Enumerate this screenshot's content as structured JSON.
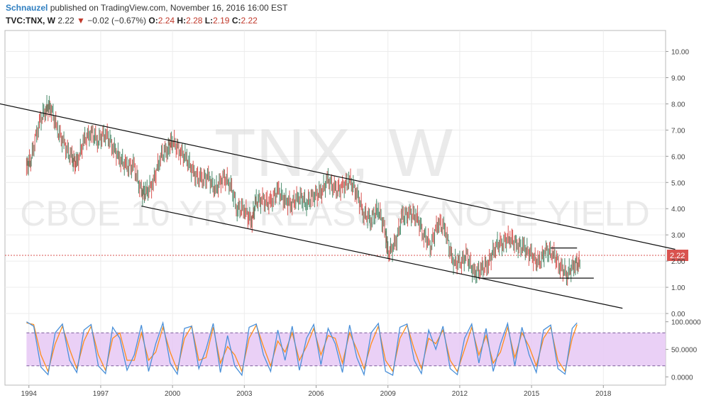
{
  "header": {
    "author": "Schnauzel",
    "published": " published on TradingView.com, November 16, 2016 16:00 EST"
  },
  "quote": {
    "symbol": "TVC:TNX, W",
    "last": "2.22",
    "change": "−0.02 (−0.67%)",
    "open_label": "O:",
    "open": "2.24",
    "high_label": "H:",
    "high": "2.28",
    "low_label": "L:",
    "low": "2.19",
    "close_label": "C:",
    "close": "2.22"
  },
  "watermark": {
    "line1": "TNX, W",
    "line2": "CBOE 10 YR TREASURY NOTE YIELD"
  },
  "colors": {
    "up": "#4a8a6a",
    "down": "#d9534f",
    "price_line": "#d9534f",
    "stoch_k": "#4a90d9",
    "stoch_d": "#ff8c1a",
    "stoch_band": "#e6c8f5"
  },
  "chart_data": [
    {
      "type": "line",
      "name": "price",
      "x_ticks": [
        "1994",
        "1997",
        "2000",
        "2003",
        "2006",
        "2009",
        "2012",
        "2015",
        "2018"
      ],
      "y_ticks": [
        "0.00",
        "1.00",
        "2.00",
        "3.00",
        "4.00",
        "5.00",
        "6.00",
        "7.00",
        "8.00",
        "9.00",
        "10.00"
      ],
      "ylim": [
        0,
        10.8
      ],
      "xlim": [
        1993.0,
        2020.6
      ],
      "last_price_label": "2.22",
      "last_price": 2.22,
      "x": [
        1993.9,
        1994.1,
        1994.4,
        1994.7,
        1994.9,
        1995.2,
        1995.5,
        1995.8,
        1996.0,
        1996.3,
        1996.6,
        1996.9,
        1997.2,
        1997.5,
        1997.8,
        1998.1,
        1998.4,
        1998.7,
        1998.9,
        1999.2,
        1999.5,
        1999.8,
        2000.0,
        2000.3,
        2000.6,
        2000.9,
        2001.2,
        2001.5,
        2001.8,
        2002.1,
        2002.4,
        2002.7,
        2003.0,
        2003.3,
        2003.5,
        2003.8,
        2004.1,
        2004.4,
        2004.7,
        2005.0,
        2005.3,
        2005.6,
        2005.9,
        2006.2,
        2006.5,
        2006.8,
        2007.1,
        2007.4,
        2007.7,
        2008.0,
        2008.3,
        2008.6,
        2008.9,
        2009.0,
        2009.3,
        2009.6,
        2009.9,
        2010.2,
        2010.5,
        2010.8,
        2011.1,
        2011.4,
        2011.7,
        2012.0,
        2012.3,
        2012.6,
        2012.9,
        2013.2,
        2013.5,
        2013.8,
        2014.1,
        2014.4,
        2014.7,
        2015.0,
        2015.3,
        2015.6,
        2015.9,
        2016.2,
        2016.5,
        2016.8
      ],
      "y": [
        5.6,
        5.9,
        7.2,
        7.8,
        7.9,
        7.0,
        6.4,
        5.9,
        5.7,
        6.6,
        6.9,
        6.6,
        6.9,
        6.4,
        5.9,
        5.6,
        5.6,
        4.6,
        4.6,
        5.0,
        6.0,
        6.3,
        6.6,
        6.2,
        5.9,
        5.3,
        5.1,
        5.2,
        4.7,
        5.2,
        5.0,
        4.0,
        4.0,
        3.5,
        4.3,
        4.3,
        4.2,
        4.7,
        4.3,
        4.2,
        4.5,
        4.2,
        4.5,
        4.6,
        5.1,
        4.7,
        4.8,
        5.1,
        4.6,
        3.8,
        3.6,
        4.0,
        3.1,
        2.3,
        2.6,
        3.7,
        3.8,
        3.7,
        3.0,
        2.6,
        3.5,
        3.2,
        2.0,
        1.9,
        2.2,
        1.5,
        1.7,
        1.9,
        2.6,
        2.7,
        2.9,
        2.6,
        2.5,
        2.2,
        1.9,
        2.4,
        2.3,
        1.8,
        1.5,
        1.9
      ],
      "annotations": {
        "upper_trendline": [
          [
            1990.0,
            8.55
          ],
          [
            2021.0,
            2.45
          ]
        ],
        "lower_trendline": [
          [
            1998.7,
            4.1
          ],
          [
            2018.8,
            0.2
          ]
        ],
        "support_line": [
          [
            2012.8,
            1.35
          ],
          [
            2017.6,
            1.35
          ]
        ],
        "resistance_line": [
          [
            2015.8,
            2.5
          ],
          [
            2016.9,
            2.5
          ]
        ]
      }
    },
    {
      "type": "line",
      "name": "stochastic",
      "y_ticks": [
        "0.0000",
        "50.0000",
        "100.0000"
      ],
      "ylim": [
        -15,
        115
      ],
      "band": [
        20,
        80
      ],
      "x": [
        1993.9,
        1994.2,
        1994.5,
        1994.8,
        1995.1,
        1995.4,
        1995.7,
        1996.0,
        1996.3,
        1996.6,
        1996.9,
        1997.2,
        1997.5,
        1997.8,
        1998.1,
        1998.4,
        1998.7,
        1999.0,
        1999.3,
        1999.6,
        1999.9,
        2000.2,
        2000.5,
        2000.8,
        2001.1,
        2001.4,
        2001.7,
        2002.0,
        2002.3,
        2002.6,
        2002.9,
        2003.2,
        2003.5,
        2003.8,
        2004.1,
        2004.4,
        2004.7,
        2005.0,
        2005.3,
        2005.6,
        2005.9,
        2006.2,
        2006.5,
        2006.8,
        2007.1,
        2007.4,
        2007.7,
        2008.0,
        2008.3,
        2008.6,
        2008.9,
        2009.2,
        2009.5,
        2009.8,
        2010.1,
        2010.4,
        2010.7,
        2011.0,
        2011.3,
        2011.6,
        2011.9,
        2012.2,
        2012.5,
        2012.8,
        2013.1,
        2013.4,
        2013.7,
        2014.0,
        2014.3,
        2014.6,
        2014.9,
        2015.2,
        2015.5,
        2015.8,
        2016.1,
        2016.4,
        2016.7,
        2016.9
      ],
      "k": [
        100,
        92,
        18,
        4,
        80,
        96,
        30,
        8,
        85,
        95,
        20,
        6,
        90,
        70,
        12,
        40,
        94,
        10,
        60,
        98,
        25,
        5,
        88,
        92,
        15,
        50,
        97,
        8,
        75,
        20,
        3,
        90,
        96,
        40,
        10,
        85,
        30,
        92,
        12,
        70,
        95,
        22,
        88,
        60,
        8,
        94,
        35,
        4,
        80,
        97,
        10,
        3,
        90,
        96,
        30,
        6,
        85,
        50,
        92,
        15,
        4,
        70,
        96,
        25,
        88,
        10,
        60,
        97,
        20,
        90,
        40,
        8,
        85,
        94,
        15,
        5,
        88,
        98
      ],
      "d": [
        98,
        95,
        40,
        10,
        60,
        92,
        50,
        15,
        65,
        92,
        40,
        12,
        70,
        80,
        30,
        30,
        80,
        30,
        45,
        90,
        45,
        12,
        70,
        92,
        30,
        35,
        90,
        25,
        55,
        40,
        10,
        70,
        94,
        55,
        20,
        65,
        45,
        80,
        30,
        55,
        88,
        40,
        75,
        70,
        25,
        80,
        50,
        15,
        60,
        92,
        30,
        10,
        70,
        94,
        50,
        15,
        70,
        60,
        85,
        30,
        10,
        50,
        90,
        40,
        75,
        25,
        45,
        90,
        35,
        80,
        55,
        20,
        70,
        90,
        30,
        10,
        70,
        95
      ]
    }
  ]
}
